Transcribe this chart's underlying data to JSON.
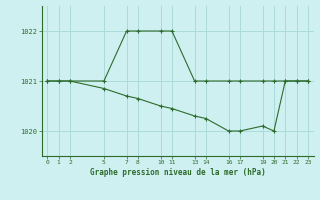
{
  "title": "Graphe pression niveau de la mer (hPa)",
  "background_color": "#cff0f0",
  "line_color": "#2d6b2d",
  "grid_color": "#aadada",
  "line1_x": [
    0,
    1,
    2,
    5,
    7,
    8,
    10,
    11,
    13,
    14,
    16,
    17,
    19,
    20,
    21,
    22,
    23
  ],
  "line1_y": [
    1021,
    1021,
    1021,
    1021,
    1022,
    1022,
    1022,
    1022,
    1021,
    1021,
    1021,
    1021,
    1021,
    1021,
    1021,
    1021,
    1021
  ],
  "line2_x": [
    0,
    1,
    2,
    5,
    7,
    8,
    10,
    11,
    13,
    14,
    16,
    17,
    19,
    20,
    21,
    22,
    23
  ],
  "line2_y": [
    1021,
    1021,
    1021,
    1020.85,
    1020.7,
    1020.65,
    1020.5,
    1020.45,
    1020.3,
    1020.25,
    1020.0,
    1020.0,
    1020.1,
    1020.0,
    1021,
    1021,
    1021
  ],
  "ylim": [
    1019.5,
    1022.5
  ],
  "xlim": [
    -0.5,
    23.5
  ],
  "yticks": [
    1020,
    1021,
    1022
  ],
  "xticks": [
    0,
    1,
    2,
    5,
    7,
    8,
    10,
    11,
    13,
    14,
    16,
    17,
    19,
    20,
    21,
    22,
    23
  ]
}
